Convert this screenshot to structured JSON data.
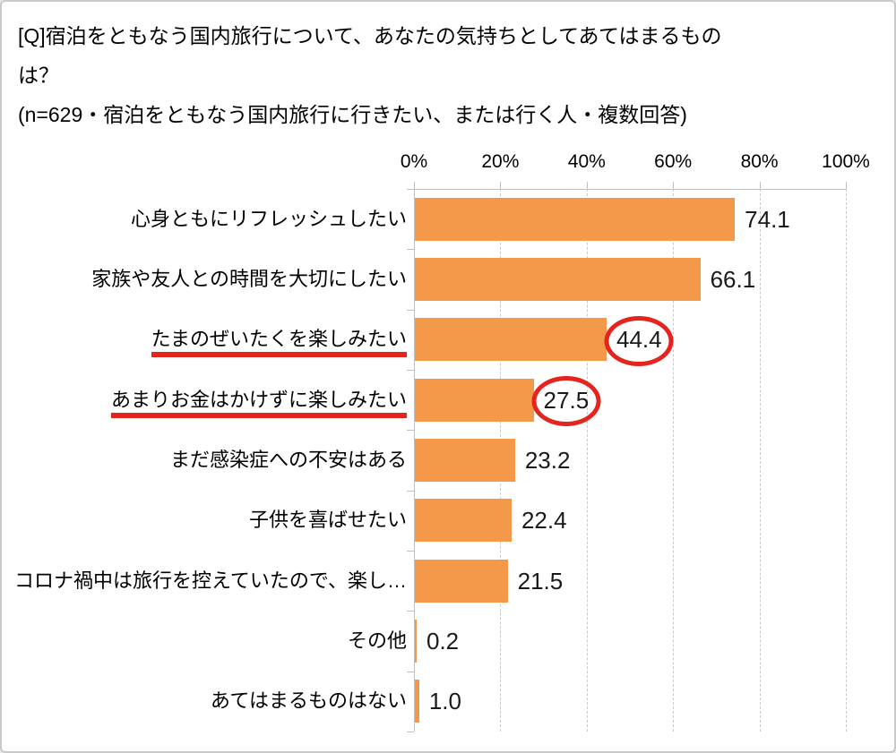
{
  "title": {
    "question_line1": "[Q]宿泊をともなう国内旅行について、あなたの気持ちとしてあてはまるもの",
    "question_line2": "は？",
    "note": "(n=629・宿泊をともなう国内旅行に行きたい、または行く人・複数回答)"
  },
  "chart_data": {
    "type": "bar",
    "orientation": "horizontal",
    "title": "",
    "xlabel": "",
    "ylabel": "",
    "xlim": [
      0,
      100
    ],
    "x_ticks": [
      "0%",
      "20%",
      "40%",
      "60%",
      "80%",
      "100%"
    ],
    "grid": "vertical-dashed",
    "legend": "none",
    "categories": [
      "心身ともにリフレッシュしたい",
      "家族や友人との時間を大切にしたい",
      "たまのぜいたくを楽しみたい",
      "あまりお金はかけずに楽しみたい",
      "まだ感染症への不安はある",
      "子供を喜ばせたい",
      "コロナ禍中は旅行を控えていたので、楽し…",
      "その他",
      "あてはまるものはない"
    ],
    "values": [
      74.1,
      66.1,
      44.4,
      27.5,
      23.2,
      22.4,
      21.5,
      0.2,
      1.0
    ],
    "value_labels": [
      "74.1",
      "66.1",
      "44.4",
      "27.5",
      "23.2",
      "22.4",
      "21.5",
      "0.2",
      "1.0"
    ],
    "annotations": {
      "underlined_category_indexes": [
        2,
        3
      ],
      "circled_value_indexes": [
        2,
        3
      ]
    }
  },
  "colors": {
    "bar": "#f4994a",
    "axis": "#bfbfbf",
    "gridline": "#c8c8c8",
    "text": "#000000",
    "value_text": "#1a1a1a",
    "annotation_red": "#e4251e",
    "page_border": "#c9c9c9",
    "background": "#ffffff"
  }
}
